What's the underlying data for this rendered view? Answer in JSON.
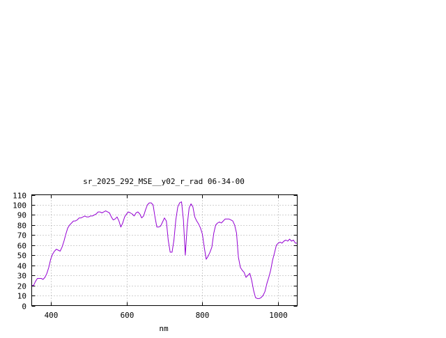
{
  "chart_data": {
    "type": "line",
    "title": "sr_2025_292_MSE__y02_r_rad 06-34-00",
    "xlabel": "nm",
    "ylabel": "",
    "xlim": [
      350,
      1050
    ],
    "ylim": [
      0,
      110
    ],
    "x_ticks": [
      400,
      600,
      800,
      1000
    ],
    "y_ticks": [
      0,
      10,
      20,
      30,
      40,
      50,
      60,
      70,
      80,
      90,
      100,
      110
    ],
    "grid": true,
    "series": [
      {
        "color": "#9400d3",
        "x": [
          350,
          355,
          360,
          365,
          370,
          375,
          380,
          385,
          390,
          395,
          400,
          405,
          410,
          415,
          420,
          425,
          430,
          435,
          440,
          445,
          450,
          455,
          460,
          465,
          470,
          475,
          480,
          485,
          490,
          495,
          500,
          505,
          510,
          515,
          520,
          525,
          530,
          535,
          540,
          545,
          550,
          555,
          560,
          565,
          570,
          575,
          580,
          585,
          590,
          595,
          600,
          605,
          610,
          615,
          620,
          625,
          630,
          635,
          640,
          645,
          650,
          655,
          660,
          665,
          670,
          675,
          680,
          685,
          690,
          695,
          700,
          705,
          710,
          715,
          720,
          725,
          730,
          735,
          740,
          745,
          750,
          755,
          760,
          765,
          770,
          775,
          780,
          785,
          790,
          795,
          800,
          805,
          810,
          815,
          820,
          825,
          830,
          835,
          840,
          845,
          850,
          855,
          860,
          865,
          870,
          875,
          880,
          885,
          890,
          895,
          900,
          905,
          910,
          915,
          920,
          925,
          930,
          935,
          940,
          945,
          950,
          955,
          960,
          965,
          970,
          975,
          980,
          985,
          990,
          995,
          1000,
          1005,
          1010,
          1015,
          1020,
          1025,
          1030,
          1035,
          1040,
          1045,
          1050
        ],
        "y": [
          20,
          20,
          24,
          27,
          27,
          27,
          26,
          28,
          32,
          38,
          46,
          51,
          54,
          56,
          55,
          54,
          58,
          64,
          71,
          77,
          80,
          82,
          84,
          84,
          85,
          87,
          87,
          88,
          89,
          88,
          88,
          89,
          89,
          90,
          91,
          93,
          93,
          92,
          93,
          94,
          93,
          92,
          88,
          85,
          86,
          88,
          84,
          78,
          82,
          88,
          91,
          93,
          92,
          91,
          89,
          92,
          93,
          91,
          87,
          89,
          95,
          100,
          102,
          102,
          100,
          88,
          78,
          78,
          79,
          83,
          87,
          84,
          65,
          53,
          53,
          65,
          85,
          98,
          102,
          103,
          85,
          50,
          80,
          97,
          101,
          98,
          88,
          84,
          81,
          77,
          71,
          58,
          46,
          49,
          53,
          58,
          72,
          80,
          82,
          83,
          82,
          84,
          86,
          86,
          86,
          85,
          84,
          80,
          72,
          48,
          38,
          35,
          33,
          28,
          30,
          32,
          25,
          15,
          8,
          7,
          7,
          8,
          10,
          14,
          22,
          28,
          35,
          45,
          52,
          60,
          62,
          63,
          62,
          64,
          65,
          64,
          66,
          64,
          65,
          62,
          62
        ]
      }
    ]
  }
}
